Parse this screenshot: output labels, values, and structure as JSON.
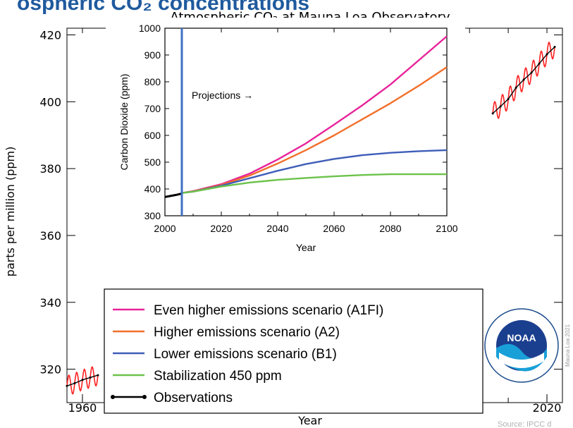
{
  "slide": {
    "title_fragment": "ospheric CO₂ concentrations",
    "source": "Source: IPCC d"
  },
  "main_chart": {
    "title": "Atmospheric CO₂ at Mauna Loa Observatory",
    "ylabel": "parts per million (ppm)",
    "xlabel": "Year",
    "y_ticks": [
      "420",
      "400",
      "380",
      "360",
      "340",
      "320"
    ],
    "x_ticks": [
      "1960",
      "2020"
    ],
    "side_note": "Mauna Loa 2021",
    "logo_text": "NOAA",
    "colors": {
      "seasonal": "#ff2020",
      "trend": "#000000"
    }
  },
  "legend": {
    "items": [
      {
        "label": "Even higher emissions scenario (A1FI)",
        "color": "#e8239a"
      },
      {
        "label": "Higher emissions scenario (A2)",
        "color": "#f26f2a"
      },
      {
        "label": "Lower emissions scenario (B1)",
        "color": "#3e5db8"
      },
      {
        "label": "Stabilization 450 ppm",
        "color": "#6cc24a"
      },
      {
        "label": "Observations",
        "color": "#000000"
      }
    ]
  },
  "inset": {
    "ylabel": "Carbon Dioxide (ppm)",
    "xlabel": "Year",
    "annotation": "Projections →",
    "y_ticks": [
      "1000",
      "900",
      "800",
      "700",
      "600",
      "500",
      "400",
      "300"
    ],
    "x_ticks": [
      "2000",
      "2020",
      "2040",
      "2060",
      "2080",
      "2100"
    ],
    "marker_color": "#3e6fc4"
  },
  "chart_data": [
    {
      "type": "line",
      "title": "Atmospheric CO₂ at Mauna Loa Observatory",
      "xlabel": "Year",
      "ylabel": "parts per million (ppm)",
      "xlim": [
        1958,
        2022
      ],
      "ylim": [
        310,
        422
      ],
      "x_tick_values": [
        1960,
        2020
      ],
      "y_tick_values": [
        320,
        340,
        360,
        380,
        400,
        420
      ],
      "series": [
        {
          "x": [
            1958,
            1959,
            1960,
            1961,
            1962
          ],
          "values": [
            315.0,
            315.8,
            316.8,
            317.5,
            318.2
          ]
        },
        {
          "x": [
            2013,
            2014,
            2015,
            2016,
            2017,
            2018,
            2019,
            2020,
            2021
          ],
          "values": [
            396.5,
            398.6,
            400.8,
            404.2,
            406.6,
            408.7,
            411.4,
            414.2,
            416.4
          ]
        }
      ]
    },
    {
      "type": "line",
      "xlabel": "Year",
      "ylabel": "Carbon Dioxide (ppm)",
      "xlim": [
        2000,
        2100
      ],
      "ylim": [
        300,
        1000
      ],
      "x_tick_values": [
        2000,
        2020,
        2040,
        2060,
        2080,
        2100
      ],
      "y_tick_values": [
        300,
        400,
        500,
        600,
        700,
        800,
        900,
        1000
      ],
      "projection_start": 2006,
      "x": [
        2006,
        2010,
        2020,
        2030,
        2040,
        2050,
        2060,
        2070,
        2080,
        2090,
        2100
      ],
      "series": [
        {
          "name": "Even higher emissions scenario (A1FI)",
          "values": [
            385,
            392,
            418,
            457,
            510,
            570,
            640,
            712,
            790,
            880,
            970
          ]
        },
        {
          "name": "Higher emissions scenario (A2)",
          "values": [
            385,
            391,
            415,
            450,
            495,
            545,
            600,
            660,
            720,
            785,
            855
          ]
        },
        {
          "name": "Lower emissions scenario (B1)",
          "values": [
            385,
            390,
            412,
            440,
            468,
            493,
            512,
            526,
            535,
            541,
            545
          ]
        },
        {
          "name": "Stabilization 450 ppm",
          "values": [
            385,
            390,
            409,
            424,
            434,
            441,
            447,
            452,
            455,
            455,
            455
          ]
        },
        {
          "name": "Observations",
          "x": [
            2000,
            2002,
            2004,
            2006
          ],
          "values": [
            370,
            374,
            378,
            383
          ]
        }
      ]
    }
  ]
}
